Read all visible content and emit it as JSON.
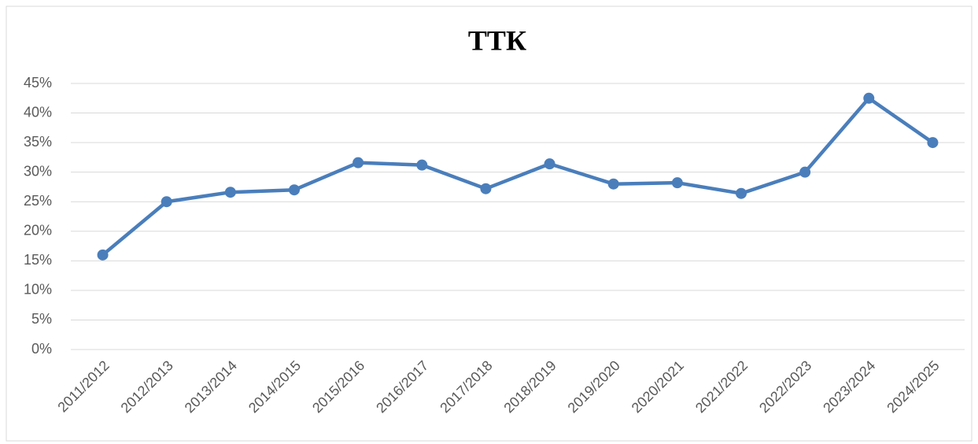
{
  "chart_data": {
    "type": "line",
    "title": "ТТК",
    "categories": [
      "2011/2012",
      "2012/2013",
      "2013/2014",
      "2014/2015",
      "2015/2016",
      "2016/2017",
      "2017/2018",
      "2018/2019",
      "2019/2020",
      "2020/2021",
      "2021/2022",
      "2022/2023",
      "2023/2024",
      "2024/2025"
    ],
    "values": [
      16.0,
      25.0,
      26.6,
      27.0,
      31.6,
      31.2,
      27.2,
      31.4,
      28.0,
      28.2,
      26.4,
      30.0,
      42.5,
      35.0
    ],
    "color": "#4a7ebb",
    "ylim": [
      0,
      45
    ],
    "yticks": [
      {
        "value": 0,
        "label": "0%"
      },
      {
        "value": 5,
        "label": "5%"
      },
      {
        "value": 10,
        "label": "10%"
      },
      {
        "value": 15,
        "label": "15%"
      },
      {
        "value": 20,
        "label": "20%"
      },
      {
        "value": 25,
        "label": "25%"
      },
      {
        "value": 30,
        "label": "30%"
      },
      {
        "value": 35,
        "label": "35%"
      },
      {
        "value": 40,
        "label": "40%"
      },
      {
        "value": 45,
        "label": "45%"
      }
    ],
    "grid": true
  }
}
